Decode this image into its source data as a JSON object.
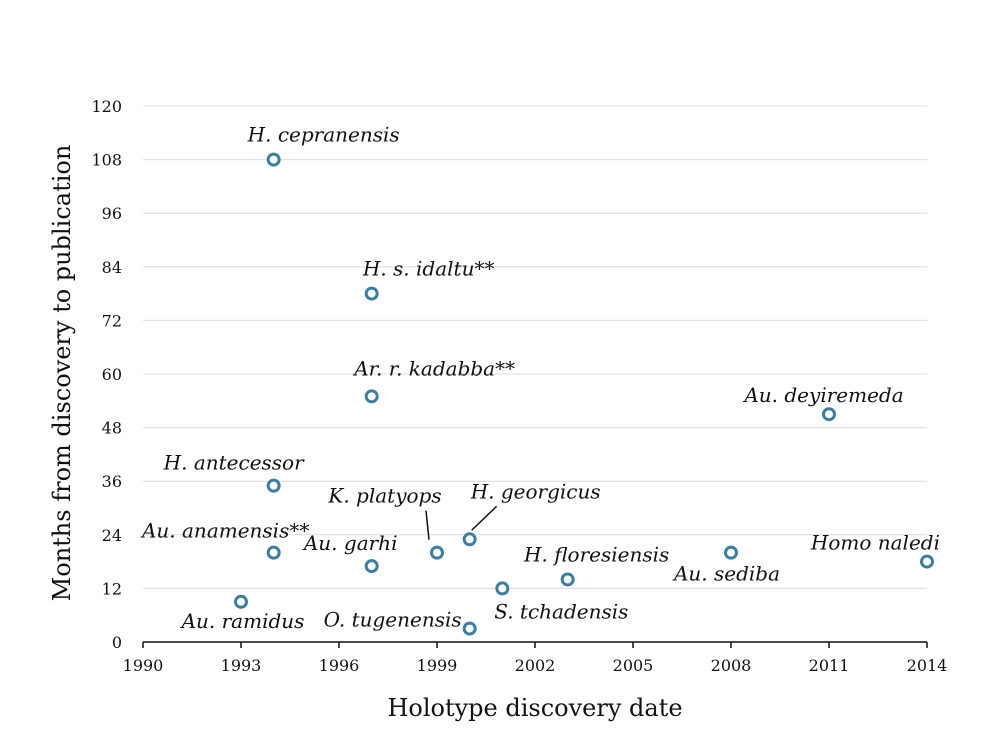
{
  "chart_data": {
    "type": "scatter",
    "xlabel": "Holotype discovery date",
    "ylabel": "Months from discovery to publication",
    "xlim": [
      1990,
      2014
    ],
    "ylim": [
      0,
      120
    ],
    "x_ticks": [
      1990,
      1993,
      1996,
      1999,
      2002,
      2005,
      2008,
      2011,
      2014
    ],
    "y_ticks": [
      0,
      12,
      24,
      36,
      48,
      60,
      72,
      84,
      96,
      108,
      120
    ],
    "grid": "horizontal",
    "marker_color": "#3b7ea1",
    "points": [
      {
        "label": "H. cepranensis",
        "x": 1994,
        "y": 108
      },
      {
        "label": "H. s. idaltu**",
        "x": 1997,
        "y": 78
      },
      {
        "label": "Ar. r. kadabba**",
        "x": 1997,
        "y": 55
      },
      {
        "label": "Au. deyiremeda",
        "x": 2011,
        "y": 51
      },
      {
        "label": "H. antecessor",
        "x": 1994,
        "y": 35
      },
      {
        "label": "K. platyops",
        "x": 1999,
        "y": 20
      },
      {
        "label": "H. georgicus",
        "x": 2000,
        "y": 23
      },
      {
        "label": "Au. anamensis**",
        "x": 1994,
        "y": 20
      },
      {
        "label": "Au. garhi",
        "x": 1997,
        "y": 17
      },
      {
        "label": "H. floresiensis",
        "x": 2003,
        "y": 14
      },
      {
        "label": "Au. sediba",
        "x": 2008,
        "y": 20
      },
      {
        "label": "Homo naledi",
        "x": 2014,
        "y": 18
      },
      {
        "label": "S. tchadensis",
        "x": 2001,
        "y": 12
      },
      {
        "label": "Au. ramidus",
        "x": 1993,
        "y": 9
      },
      {
        "label": "O. tugenensis",
        "x": 2000,
        "y": 3
      }
    ]
  }
}
